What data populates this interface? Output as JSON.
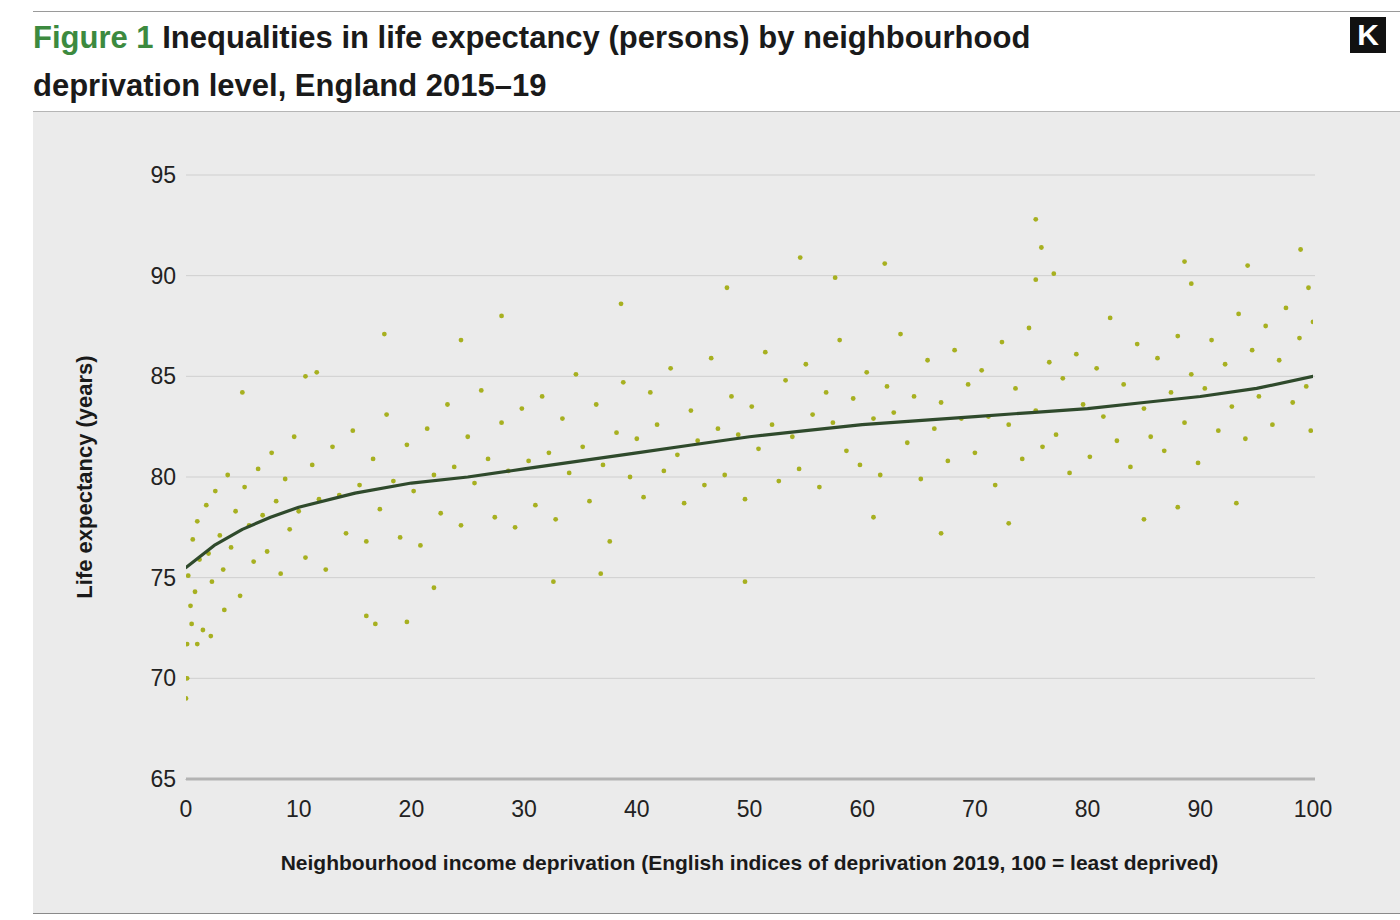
{
  "chart_data": {
    "type": "scatter",
    "title": "Inequalities in life expectancy (persons) by neighbourhood deprivation level, England 2015–19",
    "annotations": [
      "Figure 1",
      "K"
    ],
    "x_label": "Neighbourhood income deprivation (English indices of deprivation 2019, 100 = least deprived)",
    "y_label": "Life expectancy (years)",
    "xlim": [
      0,
      100
    ],
    "ylim": [
      65,
      95
    ],
    "xticks": [
      0,
      10,
      20,
      30,
      40,
      50,
      60,
      70,
      80,
      90,
      100
    ],
    "yticks": [
      65,
      70,
      75,
      80,
      85,
      90,
      95
    ],
    "grid": true,
    "series": [
      {
        "type": "scatter",
        "color": "#a7b020",
        "marker": "circle",
        "x": [
          0.2,
          0.4,
          0.6,
          0.8,
          1.0,
          1.2,
          1.5,
          1.8,
          2.0,
          2.3,
          2.6,
          3.0,
          3.3,
          3.7,
          4.0,
          4.4,
          4.8,
          5.2,
          5.6,
          6.0,
          6.4,
          6.8,
          7.2,
          7.6,
          8.0,
          8.4,
          8.8,
          9.2,
          9.6,
          10.0,
          10.6,
          11.2,
          11.8,
          12.4,
          13.0,
          13.6,
          14.2,
          14.8,
          15.4,
          16.0,
          16.6,
          17.2,
          17.8,
          18.4,
          19.0,
          19.6,
          20.2,
          20.8,
          21.4,
          22.0,
          22.6,
          23.2,
          23.8,
          24.4,
          25.0,
          25.6,
          26.2,
          26.8,
          27.4,
          28.0,
          28.6,
          29.2,
          29.8,
          30.4,
          31.0,
          31.6,
          32.2,
          32.8,
          33.4,
          34.0,
          34.6,
          35.2,
          35.8,
          36.4,
          37.0,
          37.6,
          38.2,
          38.8,
          39.4,
          40.0,
          40.6,
          41.2,
          41.8,
          42.4,
          43.0,
          43.6,
          44.2,
          44.8,
          45.4,
          46.0,
          46.6,
          47.2,
          47.8,
          48.4,
          49.0,
          49.6,
          50.2,
          50.8,
          51.4,
          52.0,
          52.6,
          53.2,
          53.8,
          54.4,
          55.0,
          55.6,
          56.2,
          56.8,
          57.4,
          58.0,
          58.6,
          59.2,
          59.8,
          60.4,
          61.0,
          61.6,
          62.2,
          62.8,
          63.4,
          64.0,
          64.6,
          65.2,
          65.8,
          66.4,
          67.0,
          67.6,
          68.2,
          68.8,
          69.4,
          70.0,
          70.6,
          71.2,
          71.8,
          72.4,
          73.0,
          73.6,
          74.2,
          74.8,
          75.4,
          76.0,
          76.6,
          77.2,
          77.8,
          78.4,
          79.0,
          79.6,
          80.2,
          80.8,
          81.4,
          82.0,
          82.6,
          83.2,
          83.8,
          84.4,
          85.0,
          85.6,
          86.2,
          86.8,
          87.4,
          88.0,
          88.6,
          89.2,
          89.8,
          90.4,
          91.0,
          91.6,
          92.2,
          92.8,
          93.4,
          94.0,
          94.6,
          95.2,
          95.8,
          96.4,
          97.0,
          97.6,
          98.2,
          98.8,
          99.4,
          100.0,
          99.8,
          0,
          0.1,
          0.1,
          1.0,
          0.5,
          75.4,
          75.9,
          98.9,
          54.5,
          62.0,
          94.2,
          88.6,
          75.4,
          77.0,
          48.0,
          57.6,
          89.2,
          99.6,
          38.6,
          28.0,
          17.6,
          24.4,
          11.6,
          10.6,
          5.0,
          32.6,
          49.6,
          16.0,
          16.8,
          19.6,
          22.0,
          36.8,
          93.2,
          85.0,
          67.0,
          73.0,
          88.0,
          61.0,
          2.2,
          3.4
        ],
        "values": [
          75.1,
          73.6,
          76.9,
          74.3,
          77.8,
          75.9,
          72.4,
          78.6,
          76.2,
          74.8,
          79.3,
          77.1,
          75.4,
          80.1,
          76.5,
          78.3,
          74.1,
          79.5,
          77.6,
          75.8,
          80.4,
          78.1,
          76.3,
          81.2,
          78.8,
          75.2,
          79.9,
          77.4,
          82.0,
          78.3,
          76.0,
          80.6,
          78.9,
          75.4,
          81.5,
          79.1,
          77.2,
          82.3,
          79.6,
          76.8,
          80.9,
          78.4,
          83.1,
          79.8,
          77.0,
          81.6,
          79.3,
          76.6,
          82.4,
          80.1,
          78.2,
          83.6,
          80.5,
          77.6,
          82.0,
          79.7,
          84.3,
          80.9,
          78.0,
          82.7,
          80.3,
          77.5,
          83.4,
          80.8,
          78.6,
          84.0,
          81.2,
          77.9,
          82.9,
          80.2,
          85.1,
          81.5,
          78.8,
          83.6,
          80.6,
          76.8,
          82.2,
          84.7,
          80.0,
          81.9,
          79.0,
          84.2,
          82.6,
          80.3,
          85.4,
          81.1,
          78.7,
          83.3,
          81.8,
          79.6,
          85.9,
          82.4,
          80.1,
          84.0,
          82.1,
          78.9,
          83.5,
          81.4,
          86.2,
          82.6,
          79.8,
          84.8,
          82.0,
          80.4,
          85.6,
          83.1,
          79.5,
          84.2,
          82.7,
          86.8,
          81.3,
          83.9,
          80.6,
          85.2,
          82.9,
          80.1,
          84.5,
          83.2,
          87.1,
          81.7,
          84.0,
          79.9,
          85.8,
          82.4,
          83.7,
          80.8,
          86.3,
          82.9,
          84.6,
          81.2,
          85.3,
          83.0,
          79.6,
          86.7,
          82.6,
          84.4,
          80.9,
          87.4,
          83.3,
          81.5,
          85.7,
          82.1,
          84.9,
          80.2,
          86.1,
          83.6,
          81.0,
          85.4,
          83.0,
          87.9,
          81.8,
          84.6,
          80.5,
          86.6,
          83.4,
          82.0,
          85.9,
          81.3,
          84.2,
          87.0,
          82.7,
          85.1,
          80.7,
          84.4,
          86.8,
          82.3,
          85.6,
          83.5,
          88.1,
          81.9,
          86.3,
          84.0,
          87.5,
          82.6,
          85.8,
          88.4,
          83.7,
          86.9,
          84.5,
          87.7,
          82.3,
          69.0,
          70.0,
          71.7,
          71.7,
          72.7,
          92.8,
          91.4,
          91.3,
          90.9,
          90.6,
          90.5,
          90.7,
          89.8,
          90.1,
          89.4,
          89.9,
          89.6,
          89.4,
          88.6,
          88.0,
          87.1,
          86.8,
          85.2,
          85.0,
          84.2,
          74.8,
          74.8,
          73.1,
          72.7,
          72.8,
          74.5,
          75.2,
          78.7,
          77.9,
          77.2,
          77.7,
          78.5,
          78.0,
          72.1,
          73.4
        ]
      },
      {
        "type": "line",
        "color": "#2f4a2c",
        "line_style": "solid",
        "x": [
          0,
          2.5,
          5,
          7.5,
          10,
          15,
          20,
          25,
          30,
          35,
          40,
          45,
          50,
          55,
          60,
          65,
          70,
          75,
          80,
          85,
          90,
          95,
          100
        ],
        "values": [
          75.5,
          76.6,
          77.4,
          78.0,
          78.5,
          79.2,
          79.7,
          80.0,
          80.4,
          80.8,
          81.2,
          81.6,
          82.0,
          82.3,
          82.6,
          82.8,
          83.0,
          83.2,
          83.4,
          83.7,
          84.0,
          84.4,
          85.0
        ]
      }
    ]
  }
}
